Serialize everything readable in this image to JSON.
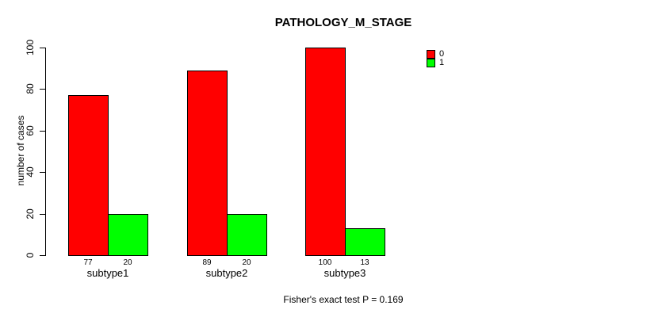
{
  "chart_data": {
    "type": "bar",
    "title": "PATHOLOGY_M_STAGE",
    "xlabel": "",
    "ylabel": "number of cases",
    "categories": [
      "subtype1",
      "subtype2",
      "subtype3"
    ],
    "series": [
      {
        "name": "0",
        "color": "#ff0000",
        "values": [
          77,
          89,
          100
        ]
      },
      {
        "name": "1",
        "color": "#00ff00",
        "values": [
          20,
          20,
          13
        ]
      }
    ],
    "value_labels": [
      [
        77,
        20
      ],
      [
        89,
        20
      ],
      [
        100,
        13
      ]
    ],
    "yticks": [
      0,
      20,
      40,
      60,
      80,
      100
    ],
    "ylim": [
      0,
      100
    ],
    "grid": false,
    "legend_position": "top-right",
    "bar_border_color": "#000000",
    "annotation": "Fisher's exact test P = 0.169"
  }
}
